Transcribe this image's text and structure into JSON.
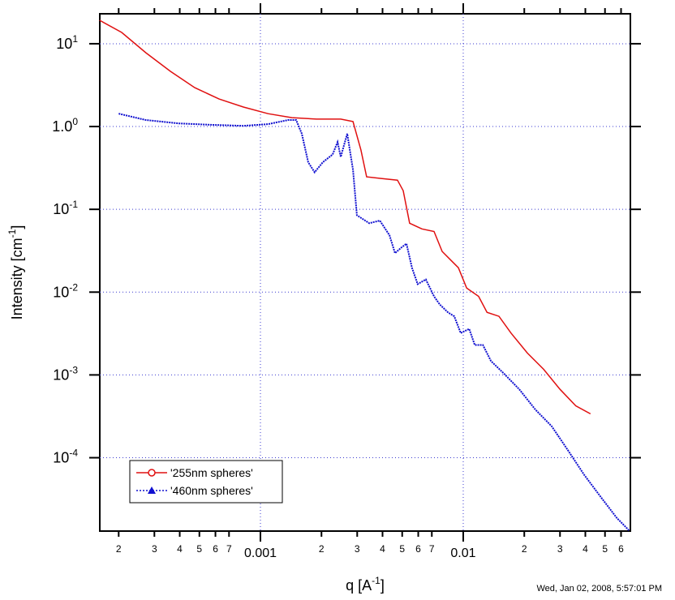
{
  "chart_data": {
    "type": "line",
    "x_label": [
      {
        "text": "q [A"
      },
      {
        "text": "-1",
        "sup": true
      },
      {
        "text": "]"
      }
    ],
    "y_label": [
      {
        "text": "Intensity [cm"
      },
      {
        "text": "-1",
        "sup": true
      },
      {
        "text": "]"
      }
    ],
    "timestamp": "Wed, Jan 02, 2008, 5:57:01 PM",
    "xscale": "log",
    "yscale": "log",
    "grid": true,
    "legend": "lower left",
    "xlim": [
      0.0001614,
      0.0667
    ],
    "ylim": [
      1.3e-05,
      23
    ],
    "xticks": [
      {
        "value": 0.0002,
        "label": "2"
      },
      {
        "value": 0.0003,
        "label": "3"
      },
      {
        "value": 0.0004,
        "label": "4"
      },
      {
        "value": 0.0005,
        "label": "5"
      },
      {
        "value": 0.0006,
        "label": "6"
      },
      {
        "value": 0.0007,
        "label": "7"
      },
      0.001,
      {
        "value": 0.002,
        "label": "2"
      },
      {
        "value": 0.003,
        "label": "3"
      },
      {
        "value": 0.004,
        "label": "4"
      },
      {
        "value": 0.005,
        "label": "5"
      },
      {
        "value": 0.006,
        "label": "6"
      },
      {
        "value": 0.007,
        "label": "7"
      },
      0.01,
      {
        "value": 0.02,
        "label": "2"
      },
      {
        "value": 0.03,
        "label": "3"
      },
      {
        "value": 0.04,
        "label": "4"
      },
      {
        "value": 0.05,
        "label": "5"
      },
      {
        "value": 0.06,
        "label": "6"
      }
    ],
    "yticks": [
      {
        "value": 10,
        "label": "10",
        "exponent": "1"
      },
      {
        "value": 1,
        "label": "1.0",
        "exponent": "0"
      },
      {
        "value": 0.1,
        "label": "10",
        "exponent": "-1"
      },
      {
        "value": 0.01,
        "label": "10",
        "exponent": "-2"
      },
      {
        "value": 0.001,
        "label": "10",
        "exponent": "-3"
      },
      {
        "value": 0.0001,
        "label": "10",
        "exponent": "-4"
      }
    ],
    "series": [
      {
        "name": "'255nm spheres'",
        "color": "#e01010",
        "marker": "circle",
        "dash": "solid",
        "x": [
          0.000161,
          0.000207,
          0.000272,
          0.00036,
          0.000474,
          0.000625,
          0.000824,
          0.00109,
          0.00143,
          0.00189,
          0.00249,
          0.00286,
          0.00313,
          0.00334,
          0.00394,
          0.00474,
          0.00506,
          0.00544,
          0.00625,
          0.00718,
          0.00787,
          0.00863,
          0.00946,
          0.0104,
          0.0119,
          0.0131,
          0.015,
          0.0172,
          0.0207,
          0.0249,
          0.03,
          0.0359,
          0.0424
        ],
        "values": [
          19.2,
          13.7,
          7.8,
          4.64,
          2.95,
          2.15,
          1.72,
          1.43,
          1.28,
          1.23,
          1.23,
          1.15,
          0.52,
          0.247,
          0.236,
          0.225,
          0.168,
          0.068,
          0.058,
          0.054,
          0.031,
          0.0247,
          0.0197,
          0.0112,
          0.0089,
          0.0057,
          0.0051,
          0.0032,
          0.00184,
          0.00117,
          0.00067,
          0.000424,
          0.000339
        ]
      },
      {
        "name": "'460nm spheres'",
        "color": "#1010d0",
        "marker": "triangle",
        "dash": "dotted",
        "x": [
          0.0002,
          0.000272,
          0.000395,
          0.00057,
          0.000824,
          0.00109,
          0.00137,
          0.0015,
          0.0016,
          0.00172,
          0.00185,
          0.00203,
          0.00227,
          0.0024,
          0.00249,
          0.00268,
          0.00286,
          0.00299,
          0.00344,
          0.00388,
          0.00433,
          0.00461,
          0.00496,
          0.00525,
          0.00559,
          0.00596,
          0.00654,
          0.00718,
          0.00766,
          0.0084,
          0.00903,
          0.00972,
          0.0107,
          0.0114,
          0.0125,
          0.0137,
          0.0158,
          0.0189,
          0.0227,
          0.0273,
          0.0329,
          0.0395,
          0.0475,
          0.0571,
          0.0656
        ],
        "values": [
          1.43,
          1.2,
          1.09,
          1.05,
          1.02,
          1.07,
          1.2,
          1.2,
          0.82,
          0.37,
          0.28,
          0.37,
          0.46,
          0.65,
          0.43,
          0.82,
          0.3,
          0.085,
          0.068,
          0.073,
          0.0486,
          0.0296,
          0.0346,
          0.0385,
          0.0197,
          0.0125,
          0.0142,
          0.0089,
          0.0071,
          0.0057,
          0.0051,
          0.0032,
          0.0036,
          0.0023,
          0.0023,
          0.00147,
          0.00105,
          0.00067,
          0.00038,
          0.00024,
          0.000122,
          6.2e-05,
          3.4e-05,
          1.88e-05,
          1.33e-05
        ]
      }
    ]
  }
}
